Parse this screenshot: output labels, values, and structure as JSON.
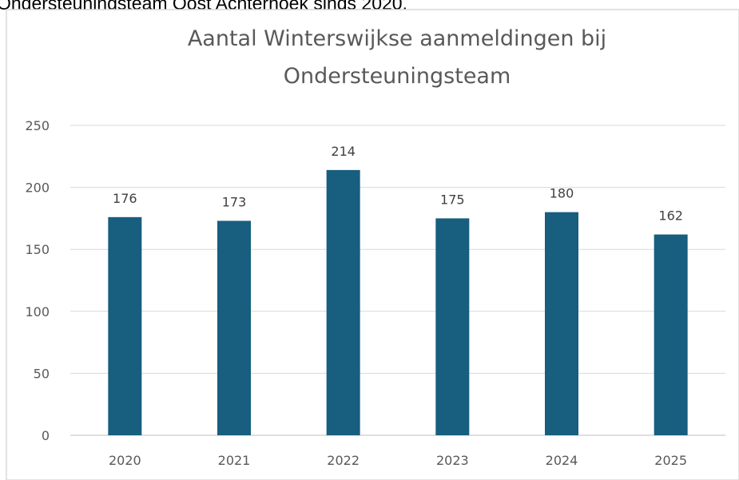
{
  "header_text": "Ondersteuningsteam Oost Achterhoek sinds 2020.",
  "chart_data": {
    "type": "bar",
    "title": [
      "Aantal Winterswijkse aanmeldingen bij",
      "Ondersteuningsteam"
    ],
    "categories": [
      "2020",
      "2021",
      "2022",
      "2023",
      "2024",
      "2025"
    ],
    "values": [
      176,
      173,
      214,
      175,
      180,
      162
    ],
    "color": "#175e7f",
    "ylim": [
      0,
      250
    ],
    "yticks": [
      0,
      50,
      100,
      150,
      200,
      250
    ],
    "grid": true
  }
}
